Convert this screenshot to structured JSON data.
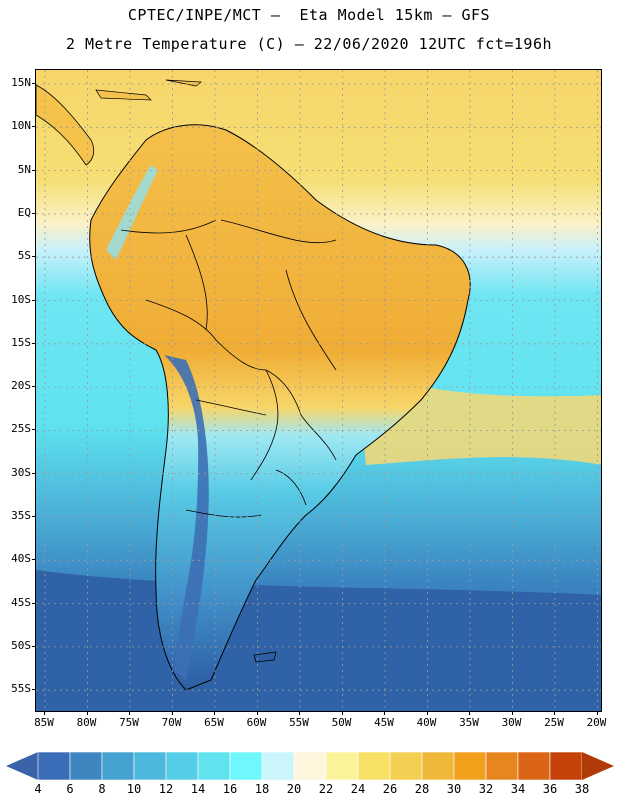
{
  "header": {
    "title_line1": "CPTEC/INPE/MCT –  Eta Model 15km – GFS",
    "title_line2": "2 Metre Temperature (C) – 22/06/2020 12UTC fct=196h"
  },
  "map": {
    "lat_ticks": [
      "15N",
      "10N",
      "5N",
      "EQ",
      "5S",
      "10S",
      "15S",
      "20S",
      "25S",
      "30S",
      "35S",
      "40S",
      "45S",
      "50S",
      "55S"
    ],
    "lon_ticks": [
      "85W",
      "80W",
      "75W",
      "70W",
      "65W",
      "60W",
      "55W",
      "50W",
      "45W",
      "40W",
      "35W",
      "30W",
      "25W",
      "20W"
    ],
    "ocean_color": "#4fb8da",
    "warm_color": "#f3b03a",
    "cold_color": "#2a63a6",
    "border_color": "#000000",
    "grid_color": "#9a9a9a"
  },
  "colorbar": {
    "labels": [
      "4",
      "6",
      "8",
      "10",
      "12",
      "14",
      "16",
      "18",
      "20",
      "22",
      "24",
      "26",
      "28",
      "30",
      "32",
      "34",
      "36",
      "38"
    ],
    "colors": [
      "#3b6cb7",
      "#3f86c1",
      "#45a1cf",
      "#4db8dd",
      "#56cde7",
      "#60e3ef",
      "#6ff8fb",
      "#c9f5fb",
      "#fdf6dd",
      "#fbf39a",
      "#f7e063",
      "#f3cf52",
      "#f0b83a",
      "#f2a01c",
      "#e7861f",
      "#da6515",
      "#c5420b"
    ],
    "under_color": "#3a64a8",
    "over_color": "#b13b08"
  }
}
